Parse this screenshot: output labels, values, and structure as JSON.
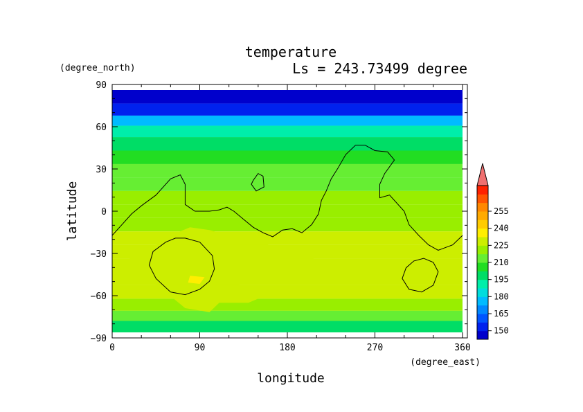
{
  "chart_data": {
    "type": "heatmap",
    "title": "temperature",
    "subtitle": "Ls = 243.73499 degree",
    "xlabel": "longitude",
    "ylabel": "latitude",
    "x_units": "(degree_east)",
    "y_units": "(degree_north)",
    "xlim": [
      0,
      360
    ],
    "ylim": [
      -90,
      90
    ],
    "x_ticks": [
      0,
      90,
      180,
      270,
      360
    ],
    "y_ticks": [
      90,
      60,
      30,
      0,
      -30,
      -60,
      -90
    ],
    "x_tick_labels": [
      "0",
      "90",
      "180",
      "270",
      "360"
    ],
    "y_tick_labels": [
      "90",
      "60",
      "30",
      "0",
      "−30",
      "−60",
      "−90"
    ],
    "colorbar": {
      "min": 142.5,
      "max": 262.5,
      "step": 7.5,
      "tick_values": [
        150,
        165,
        180,
        195,
        210,
        225,
        240,
        255
      ],
      "tick_labels": [
        "150",
        "165",
        "180",
        "195",
        "210",
        "225",
        "240",
        "255"
      ],
      "extend": "max",
      "colors": [
        "#0000cc",
        "#0022ee",
        "#0055ff",
        "#0088ff",
        "#00bbff",
        "#00dddd",
        "#00eeaa",
        "#00dd66",
        "#22dd22",
        "#66ee33",
        "#99ee00",
        "#ccee00",
        "#ffee00",
        "#ffcc00",
        "#ffaa00",
        "#ff8800",
        "#ff5500",
        "#ff2200",
        "#ee0000"
      ],
      "extend_color": "#f07070"
    },
    "lat_band_temperature": [
      {
        "lat": 85,
        "value": 147
      },
      {
        "lat": 75,
        "value": 155
      },
      {
        "lat": 67,
        "value": 175
      },
      {
        "lat": 60,
        "value": 190
      },
      {
        "lat": 50,
        "value": 200
      },
      {
        "lat": 40,
        "value": 207
      },
      {
        "lat": 30,
        "value": 213
      },
      {
        "lat": 20,
        "value": 216
      },
      {
        "lat": 10,
        "value": 218
      },
      {
        "lat": 0,
        "value": 220
      },
      {
        "lat": -10,
        "value": 224
      },
      {
        "lat": -20,
        "value": 226
      },
      {
        "lat": -30,
        "value": 228
      },
      {
        "lat": -40,
        "value": 229
      },
      {
        "lat": -50,
        "value": 228
      },
      {
        "lat": -60,
        "value": 226
      },
      {
        "lat": -70,
        "value": 220
      },
      {
        "lat": -78,
        "value": 210
      },
      {
        "lat": -85,
        "value": 200
      }
    ],
    "warm_region": {
      "value": 232,
      "outline": [
        [
          20,
          -33
        ],
        [
          40,
          -28
        ],
        [
          60,
          -18
        ],
        [
          80,
          -12
        ],
        [
          100,
          -14
        ],
        [
          120,
          -18
        ],
        [
          145,
          -22
        ],
        [
          165,
          -26
        ],
        [
          190,
          -30
        ],
        [
          210,
          -36
        ],
        [
          225,
          -44
        ],
        [
          215,
          -52
        ],
        [
          190,
          -52
        ],
        [
          165,
          -52
        ],
        [
          140,
          -50
        ],
        [
          125,
          -58
        ],
        [
          150,
          -65
        ],
        [
          140,
          -68
        ],
        [
          110,
          -68
        ],
        [
          100,
          -75
        ],
        [
          75,
          -72
        ],
        [
          60,
          -63
        ],
        [
          45,
          -55
        ],
        [
          40,
          -45
        ],
        [
          30,
          -38
        ],
        [
          15,
          -38
        ]
      ]
    },
    "hot_spot": {
      "value": 237,
      "outline": [
        [
          80,
          -48
        ],
        [
          95,
          -49
        ],
        [
          90,
          -54
        ],
        [
          78,
          -53
        ]
      ]
    },
    "contours": [
      [
        [
          0,
          -18
        ],
        [
          10,
          -10
        ],
        [
          20,
          -2
        ],
        [
          30,
          4
        ],
        [
          45,
          12
        ],
        [
          60,
          24
        ],
        [
          70,
          27
        ],
        [
          75,
          20
        ],
        [
          75,
          5
        ],
        [
          85,
          0
        ],
        [
          100,
          0
        ],
        [
          110,
          1
        ],
        [
          118,
          3
        ],
        [
          125,
          0
        ],
        [
          135,
          -6
        ],
        [
          145,
          -12
        ],
        [
          155,
          -16
        ],
        [
          165,
          -19
        ],
        [
          175,
          -14
        ],
        [
          185,
          -13
        ],
        [
          195,
          -16
        ],
        [
          205,
          -10
        ],
        [
          212,
          -2
        ],
        [
          215,
          8
        ],
        [
          220,
          15
        ],
        [
          225,
          24
        ],
        [
          232,
          32
        ],
        [
          240,
          42
        ],
        [
          250,
          49
        ],
        [
          260,
          49
        ],
        [
          270,
          45
        ],
        [
          283,
          44
        ],
        [
          290,
          38
        ],
        [
          280,
          28
        ],
        [
          275,
          20
        ],
        [
          275,
          10
        ],
        [
          285,
          12
        ],
        [
          300,
          0
        ],
        [
          305,
          -10
        ],
        [
          315,
          -18
        ],
        [
          325,
          -25
        ],
        [
          335,
          -29
        ],
        [
          350,
          -25
        ],
        [
          360,
          -18
        ]
      ],
      [
        [
          145,
          23
        ],
        [
          150,
          28
        ],
        [
          155,
          26
        ],
        [
          156,
          18
        ],
        [
          148,
          15
        ],
        [
          143,
          20
        ]
      ],
      [
        [
          75,
          -20
        ],
        [
          90,
          -23
        ],
        [
          103,
          -33
        ],
        [
          105,
          -43
        ],
        [
          100,
          -52
        ],
        [
          90,
          -58
        ],
        [
          75,
          -62
        ],
        [
          60,
          -60
        ],
        [
          45,
          -50
        ],
        [
          38,
          -40
        ],
        [
          42,
          -30
        ],
        [
          55,
          -23
        ],
        [
          65,
          -20
        ]
      ],
      [
        [
          320,
          -35
        ],
        [
          330,
          -38
        ],
        [
          335,
          -45
        ],
        [
          330,
          -55
        ],
        [
          318,
          -60
        ],
        [
          305,
          -58
        ],
        [
          298,
          -50
        ],
        [
          302,
          -42
        ],
        [
          310,
          -37
        ]
      ]
    ]
  }
}
